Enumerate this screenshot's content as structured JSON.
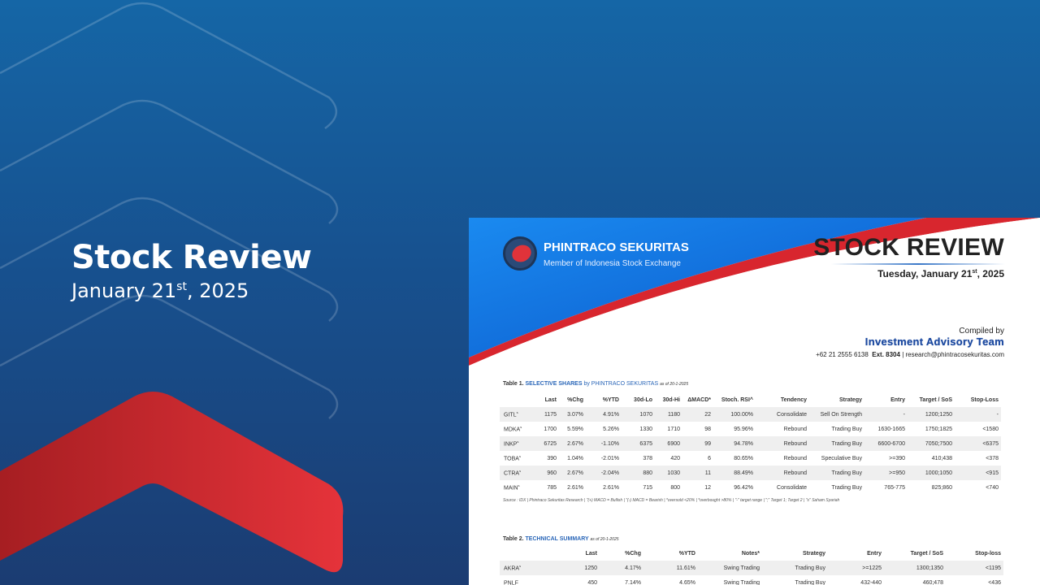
{
  "hero": {
    "title": "Stock Review",
    "date_main": "January 21",
    "date_sup": "st",
    "date_year": ", 2025"
  },
  "document": {
    "brand": "PHINTRACO SEKURITAS",
    "brand_sub": "Member of Indonesia Stock Exchange",
    "title": "STOCK REVIEW",
    "date_main": "Tuesday, January 21",
    "date_sup": "st",
    "date_year": ", 2025",
    "compiled_by": "Compiled by",
    "team": "Investment Advisory Team",
    "contact": "+62 21 2555 6138",
    "ext": "Ext. 8304",
    "email": "| research@phintracosekuritas.com",
    "colors": {
      "brand_blue": "#0a6fe0",
      "accent_red": "#d8262e"
    }
  },
  "table1": {
    "label": "Table 1.",
    "title": "SELECTIVE SHARES",
    "by": "by PHINTRACO SEKURITAS",
    "asof": "as of 20-1-2025",
    "headers": [
      "",
      "Last",
      "%Chg",
      "%YTD",
      "30d-Lo",
      "30d-Hi",
      "ΔMACD*",
      "Stoch. RSI^",
      "Tendency",
      "Strategy",
      "Entry",
      "Target / SoS",
      "Stop-Loss"
    ],
    "rows": [
      [
        "GITL",
        "s",
        "1175",
        "3.07%",
        "4.91%",
        "1070",
        "1180",
        "22",
        "100.00%",
        "Consolidate",
        "Sell On Strength",
        "-",
        "1200;1250",
        "-"
      ],
      [
        "MDKA",
        "s",
        "1700",
        "5.59%",
        "5.26%",
        "1330",
        "1710",
        "98",
        "95.96%",
        "Rebound",
        "Trading Buy",
        "1630-1665",
        "1750;1825",
        "<1580"
      ],
      [
        "INKP",
        "s",
        "6725",
        "2.67%",
        "-1.10%",
        "6375",
        "6900",
        "99",
        "94.78%",
        "Rebound",
        "Trading Buy",
        "6600-6700",
        "7050;7500",
        "<6375"
      ],
      [
        "TOBA",
        "s",
        "390",
        "1.04%",
        "-2.01%",
        "378",
        "420",
        "6",
        "80.65%",
        "Rebound",
        "Speculative Buy",
        ">=390",
        "410;438",
        "<378"
      ],
      [
        "CTRA",
        "s",
        "960",
        "2.67%",
        "-2.04%",
        "880",
        "1030",
        "11",
        "88.49%",
        "Rebound",
        "Trading Buy",
        ">=950",
        "1000;1050",
        "<915"
      ],
      [
        "MAIN",
        "s",
        "785",
        "2.61%",
        "2.61%",
        "715",
        "800",
        "12",
        "96.42%",
        "Consolidate",
        "Trading Buy",
        "765-775",
        "825;860",
        "<740"
      ]
    ],
    "footnote": "Source : IDX | Phintraco Sekuritas Research | \"(+) MACD = Bullish | \"(-) MACD = Bearish | *oversold <20% | *overbought >80% | \"-\" target range | \";\" Target 1; Target 2 | \"s\" Saham Syariah"
  },
  "table2": {
    "label": "Table 2.",
    "title": "TECHNICAL SUMMARY",
    "asof": "as of 20-1-2025",
    "headers": [
      "",
      "Last",
      "%Chg",
      "%YTD",
      "Notes*",
      "Strategy",
      "Entry",
      "Target / SoS",
      "Stop-loss"
    ],
    "rows": [
      [
        "AKRA",
        "s",
        "1250",
        "4.17%",
        "11.61%",
        "Swing Trading",
        "Trading Buy",
        ">=1225",
        "1300;1350",
        "<1195"
      ],
      [
        "PNLF",
        "",
        "450",
        "7.14%",
        "4.65%",
        "Swing Trading",
        "Trading Buy",
        "432-440",
        "460;478",
        "<436"
      ]
    ]
  }
}
